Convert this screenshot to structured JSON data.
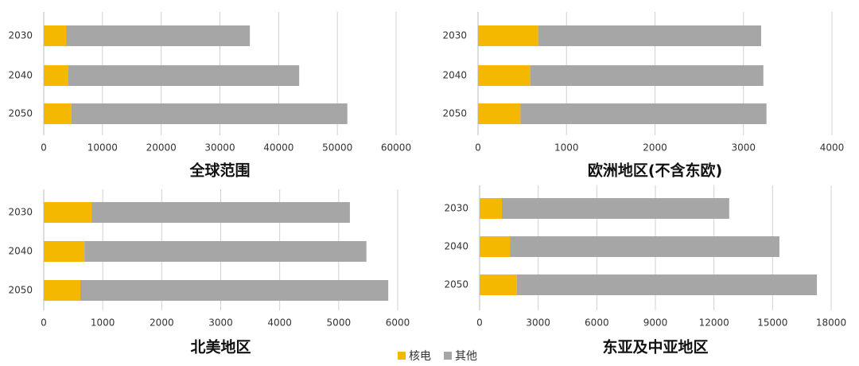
{
  "chart_data": [
    {
      "type": "stacked-bar-horizontal",
      "title": "全球范围",
      "categories": [
        "2030",
        "2040",
        "2050"
      ],
      "series": [
        {
          "name": "核电",
          "color": "#f5b800",
          "values": [
            3800,
            4200,
            4700
          ]
        },
        {
          "name": "其他",
          "color": "#a6a6a6",
          "values": [
            31300,
            39300,
            47000
          ]
        }
      ],
      "xlim": [
        0,
        60000
      ],
      "xticks": [
        0,
        10000,
        20000,
        30000,
        40000,
        50000,
        60000
      ],
      "grid": true
    },
    {
      "type": "stacked-bar-horizontal",
      "title": "欧洲地区(不含东欧)",
      "categories": [
        "2030",
        "2040",
        "2050"
      ],
      "series": [
        {
          "color": "#f5b800",
          "values": [
            680,
            590,
            480
          ]
        },
        {
          "color": "#a6a6a6",
          "values": [
            2520,
            2635,
            2780
          ]
        }
      ],
      "xlim": [
        0,
        4000
      ],
      "xticks": [
        0,
        1000,
        2000,
        3000,
        4000
      ],
      "grid": true
    },
    {
      "type": "stacked-bar-horizontal",
      "title": "北美地区",
      "categories": [
        "2030",
        "2040",
        "2050"
      ],
      "series": [
        {
          "color": "#f5b800",
          "values": [
            810,
            690,
            620
          ]
        },
        {
          "color": "#a6a6a6",
          "values": [
            4380,
            4780,
            5220
          ]
        }
      ],
      "xlim": [
        0,
        6000
      ],
      "xticks": [
        0,
        1000,
        2000,
        3000,
        4000,
        5000,
        6000
      ],
      "grid": true
    },
    {
      "type": "stacked-bar-horizontal",
      "title": "东亚及中亚地区",
      "categories": [
        "2030",
        "2040",
        "2050"
      ],
      "series": [
        {
          "color": "#f5b800",
          "values": [
            1140,
            1550,
            1910
          ]
        },
        {
          "color": "#a6a6a6",
          "values": [
            11640,
            13800,
            15360
          ]
        }
      ],
      "xlim": [
        0,
        18000
      ],
      "xticks": [
        0,
        3000,
        6000,
        9000,
        12000,
        15000,
        18000
      ],
      "grid": true
    }
  ]
}
